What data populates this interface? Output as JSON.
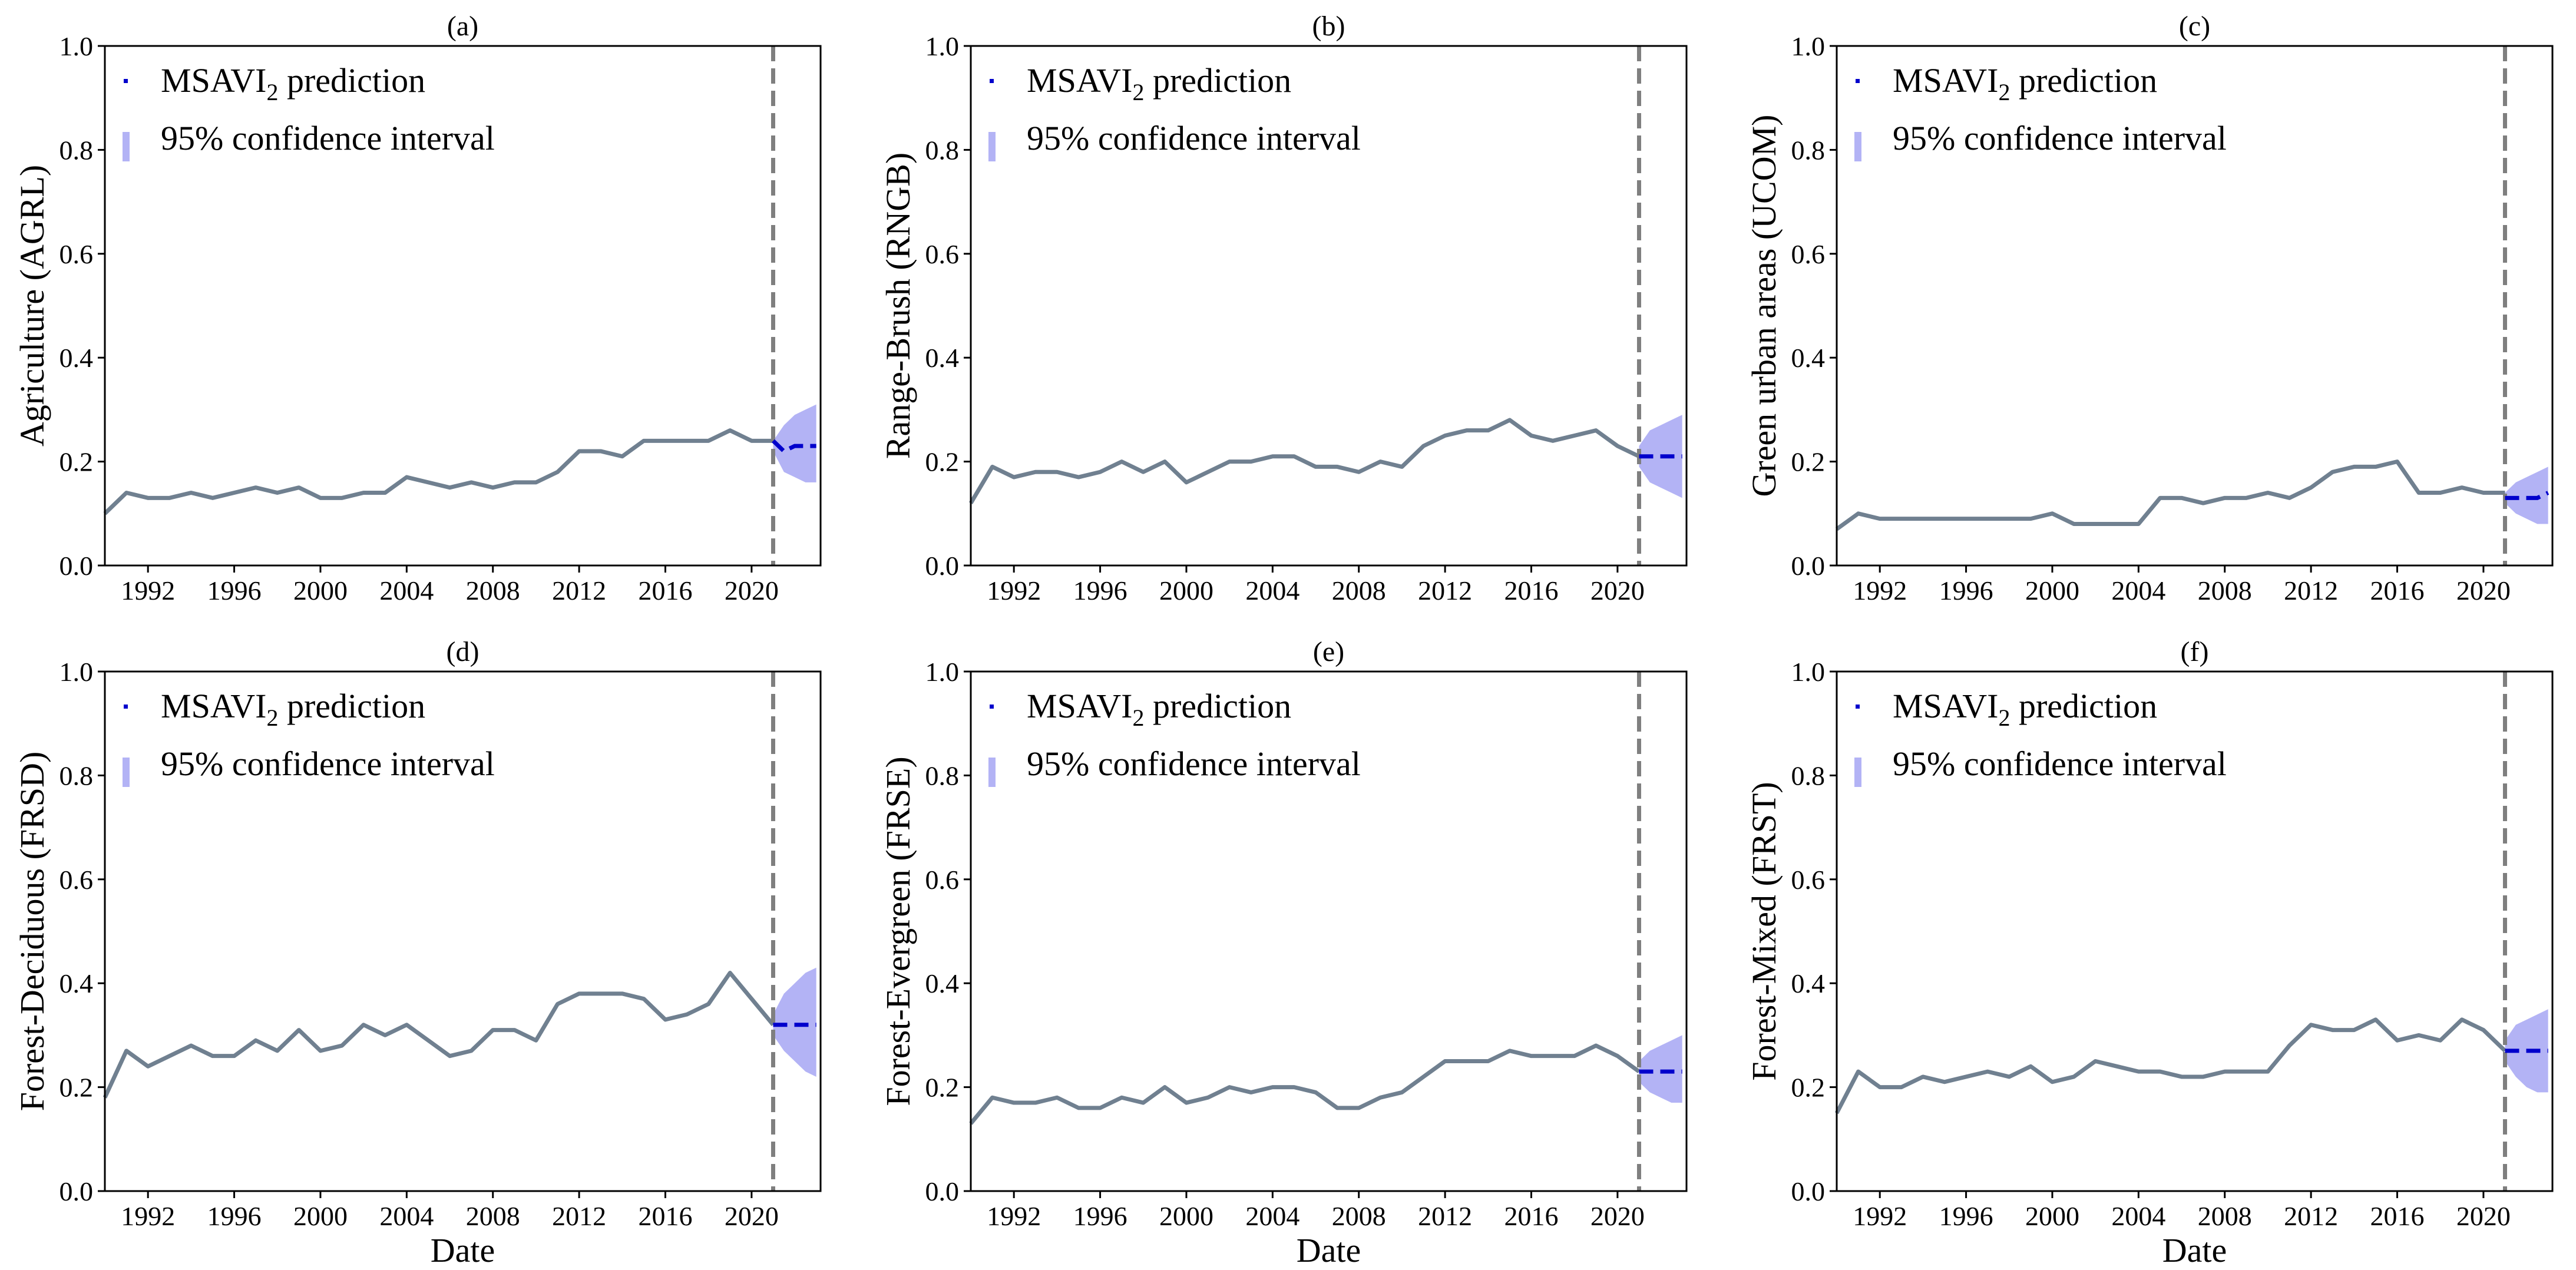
{
  "chart_data": [
    {
      "type": "line",
      "title": "(a)",
      "xlabel": "",
      "ylabel": "Agriculture (AGRL)",
      "ylim": [
        0.0,
        1.0
      ],
      "xlim": [
        1990,
        2023.2
      ],
      "xticks": [
        "1992",
        "1996",
        "2000",
        "2004",
        "2008",
        "2012",
        "2016",
        "2020"
      ],
      "yticks": [
        "0.0",
        "0.2",
        "0.4",
        "0.6",
        "0.8",
        "1.0"
      ],
      "vline_x": 2021,
      "legend": {
        "position": "top-left",
        "entries": [
          {
            "label_main": "MSAVI",
            "label_sub": "2",
            "label_rest": " prediction",
            "kind": "marker",
            "color": "#0000cc"
          },
          {
            "label": "95% confidence interval",
            "kind": "patch",
            "color": "#b3b3f5"
          }
        ]
      },
      "series": [
        {
          "kind": "observed",
          "color": "#708090",
          "x": [
            1990,
            1991,
            1992,
            1993,
            1994,
            1995,
            1996,
            1997,
            1998,
            1999,
            2000,
            2001,
            2002,
            2003,
            2004,
            2005,
            2006,
            2007,
            2008,
            2009,
            2010,
            2011,
            2012,
            2013,
            2014,
            2015,
            2016,
            2017,
            2018,
            2019,
            2020,
            2021
          ],
          "y": [
            0.1,
            0.14,
            0.13,
            0.13,
            0.14,
            0.13,
            0.14,
            0.15,
            0.14,
            0.15,
            0.13,
            0.13,
            0.14,
            0.14,
            0.17,
            0.16,
            0.15,
            0.16,
            0.15,
            0.16,
            0.16,
            0.18,
            0.22,
            0.22,
            0.21,
            0.24,
            0.24,
            0.24,
            0.24,
            0.26,
            0.24,
            0.24
          ]
        },
        {
          "kind": "prediction",
          "color": "#0000cc",
          "x": [
            2021,
            2021.5,
            2022,
            2022.5,
            2023
          ],
          "y": [
            0.24,
            0.22,
            0.23,
            0.23,
            0.23
          ],
          "ci_lower": [
            0.22,
            0.18,
            0.17,
            0.16,
            0.16
          ],
          "ci_upper": [
            0.24,
            0.27,
            0.29,
            0.3,
            0.31
          ]
        }
      ]
    },
    {
      "type": "line",
      "title": "(b)",
      "xlabel": "",
      "ylabel": "Range-Brush (RNGB)",
      "ylim": [
        0.0,
        1.0
      ],
      "xlim": [
        1990,
        2023.2
      ],
      "xticks": [
        "1992",
        "1996",
        "2000",
        "2004",
        "2008",
        "2012",
        "2016",
        "2020"
      ],
      "yticks": [
        "0.0",
        "0.2",
        "0.4",
        "0.6",
        "0.8",
        "1.0"
      ],
      "vline_x": 2021,
      "legend": {
        "position": "top-left",
        "entries": [
          {
            "label_main": "MSAVI",
            "label_sub": "2",
            "label_rest": " prediction",
            "kind": "marker",
            "color": "#0000cc"
          },
          {
            "label": "95% confidence interval",
            "kind": "patch",
            "color": "#b3b3f5"
          }
        ]
      },
      "series": [
        {
          "kind": "observed",
          "color": "#708090",
          "x": [
            1990,
            1991,
            1992,
            1993,
            1994,
            1995,
            1996,
            1997,
            1998,
            1999,
            2000,
            2001,
            2002,
            2003,
            2004,
            2005,
            2006,
            2007,
            2008,
            2009,
            2010,
            2011,
            2012,
            2013,
            2014,
            2015,
            2016,
            2017,
            2018,
            2019,
            2020,
            2021
          ],
          "y": [
            0.12,
            0.19,
            0.17,
            0.18,
            0.18,
            0.17,
            0.18,
            0.2,
            0.18,
            0.2,
            0.16,
            0.18,
            0.2,
            0.2,
            0.21,
            0.21,
            0.19,
            0.19,
            0.18,
            0.2,
            0.19,
            0.23,
            0.25,
            0.26,
            0.26,
            0.28,
            0.25,
            0.24,
            0.25,
            0.26,
            0.23,
            0.21
          ]
        },
        {
          "kind": "prediction",
          "color": "#0000cc",
          "x": [
            2021,
            2021.5,
            2022,
            2022.5,
            2023
          ],
          "y": [
            0.21,
            0.21,
            0.21,
            0.21,
            0.21
          ],
          "ci_lower": [
            0.19,
            0.16,
            0.15,
            0.14,
            0.13
          ],
          "ci_upper": [
            0.23,
            0.26,
            0.27,
            0.28,
            0.29
          ]
        }
      ]
    },
    {
      "type": "line",
      "title": "(c)",
      "xlabel": "",
      "ylabel": "Green urban areas (UCOM)",
      "ylim": [
        0.0,
        1.0
      ],
      "xlim": [
        1990,
        2023.2
      ],
      "xticks": [
        "1992",
        "1996",
        "2000",
        "2004",
        "2008",
        "2012",
        "2016",
        "2020"
      ],
      "yticks": [
        "0.0",
        "0.2",
        "0.4",
        "0.6",
        "0.8",
        "1.0"
      ],
      "vline_x": 2021,
      "legend": {
        "position": "top-left",
        "entries": [
          {
            "label_main": "MSAVI",
            "label_sub": "2",
            "label_rest": " prediction",
            "kind": "marker",
            "color": "#0000cc"
          },
          {
            "label": "95% confidence interval",
            "kind": "patch",
            "color": "#b3b3f5"
          }
        ]
      },
      "series": [
        {
          "kind": "observed",
          "color": "#708090",
          "x": [
            1990,
            1991,
            1992,
            1993,
            1994,
            1995,
            1996,
            1997,
            1998,
            1999,
            2000,
            2001,
            2002,
            2003,
            2004,
            2005,
            2006,
            2007,
            2008,
            2009,
            2010,
            2011,
            2012,
            2013,
            2014,
            2015,
            2016,
            2017,
            2018,
            2019,
            2020,
            2021
          ],
          "y": [
            0.07,
            0.1,
            0.09,
            0.09,
            0.09,
            0.09,
            0.09,
            0.09,
            0.09,
            0.09,
            0.1,
            0.08,
            0.08,
            0.08,
            0.08,
            0.13,
            0.13,
            0.12,
            0.13,
            0.13,
            0.14,
            0.13,
            0.15,
            0.18,
            0.19,
            0.19,
            0.2,
            0.14,
            0.14,
            0.15,
            0.14,
            0.14
          ]
        },
        {
          "kind": "prediction",
          "color": "#0000cc",
          "x": [
            2021,
            2021.5,
            2022,
            2022.5,
            2023
          ],
          "y": [
            0.13,
            0.13,
            0.13,
            0.13,
            0.14
          ],
          "ci_lower": [
            0.12,
            0.1,
            0.09,
            0.08,
            0.08
          ],
          "ci_upper": [
            0.14,
            0.16,
            0.17,
            0.18,
            0.19
          ]
        }
      ]
    },
    {
      "type": "line",
      "title": "(d)",
      "xlabel": "Date",
      "ylabel": "Forest-Deciduous (FRSD)",
      "ylim": [
        0.0,
        1.0
      ],
      "xlim": [
        1990,
        2023.2
      ],
      "xticks": [
        "1992",
        "1996",
        "2000",
        "2004",
        "2008",
        "2012",
        "2016",
        "2020"
      ],
      "yticks": [
        "0.0",
        "0.2",
        "0.4",
        "0.6",
        "0.8",
        "1.0"
      ],
      "vline_x": 2021,
      "legend": {
        "position": "top-left",
        "entries": [
          {
            "label_main": "MSAVI",
            "label_sub": "2",
            "label_rest": " prediction",
            "kind": "marker",
            "color": "#0000cc"
          },
          {
            "label": "95% confidence interval",
            "kind": "patch",
            "color": "#b3b3f5"
          }
        ]
      },
      "series": [
        {
          "kind": "observed",
          "color": "#708090",
          "x": [
            1990,
            1991,
            1992,
            1993,
            1994,
            1995,
            1996,
            1997,
            1998,
            1999,
            2000,
            2001,
            2002,
            2003,
            2004,
            2005,
            2006,
            2007,
            2008,
            2009,
            2010,
            2011,
            2012,
            2013,
            2014,
            2015,
            2016,
            2017,
            2018,
            2019,
            2020,
            2021
          ],
          "y": [
            0.18,
            0.27,
            0.24,
            0.26,
            0.28,
            0.26,
            0.26,
            0.29,
            0.27,
            0.31,
            0.27,
            0.28,
            0.32,
            0.3,
            0.32,
            0.29,
            0.26,
            0.27,
            0.31,
            0.31,
            0.29,
            0.36,
            0.38,
            0.38,
            0.38,
            0.37,
            0.33,
            0.34,
            0.36,
            0.42,
            0.37,
            0.32
          ]
        },
        {
          "kind": "prediction",
          "color": "#0000cc",
          "x": [
            2021,
            2021.5,
            2022,
            2022.5,
            2023
          ],
          "y": [
            0.32,
            0.32,
            0.32,
            0.32,
            0.32
          ],
          "ci_lower": [
            0.3,
            0.27,
            0.25,
            0.23,
            0.22
          ],
          "ci_upper": [
            0.34,
            0.38,
            0.4,
            0.42,
            0.43
          ]
        }
      ]
    },
    {
      "type": "line",
      "title": "(e)",
      "xlabel": "Date",
      "ylabel": "Forest-Evergreen (FRSE)",
      "ylim": [
        0.0,
        1.0
      ],
      "xlim": [
        1990,
        2023.2
      ],
      "xticks": [
        "1992",
        "1996",
        "2000",
        "2004",
        "2008",
        "2012",
        "2016",
        "2020"
      ],
      "yticks": [
        "0.0",
        "0.2",
        "0.4",
        "0.6",
        "0.8",
        "1.0"
      ],
      "vline_x": 2021,
      "legend": {
        "position": "top-left",
        "entries": [
          {
            "label_main": "MSAVI",
            "label_sub": "2",
            "label_rest": " prediction",
            "kind": "marker",
            "color": "#0000cc"
          },
          {
            "label": "95% confidence interval",
            "kind": "patch",
            "color": "#b3b3f5"
          }
        ]
      },
      "series": [
        {
          "kind": "observed",
          "color": "#708090",
          "x": [
            1990,
            1991,
            1992,
            1993,
            1994,
            1995,
            1996,
            1997,
            1998,
            1999,
            2000,
            2001,
            2002,
            2003,
            2004,
            2005,
            2006,
            2007,
            2008,
            2009,
            2010,
            2011,
            2012,
            2013,
            2014,
            2015,
            2016,
            2017,
            2018,
            2019,
            2020,
            2021
          ],
          "y": [
            0.13,
            0.18,
            0.17,
            0.17,
            0.18,
            0.16,
            0.16,
            0.18,
            0.17,
            0.2,
            0.17,
            0.18,
            0.2,
            0.19,
            0.2,
            0.2,
            0.19,
            0.16,
            0.16,
            0.18,
            0.19,
            0.22,
            0.25,
            0.25,
            0.25,
            0.27,
            0.26,
            0.26,
            0.26,
            0.28,
            0.26,
            0.23
          ]
        },
        {
          "kind": "prediction",
          "color": "#0000cc",
          "x": [
            2021,
            2021.5,
            2022,
            2022.5,
            2023
          ],
          "y": [
            0.23,
            0.23,
            0.23,
            0.23,
            0.23
          ],
          "ci_lower": [
            0.21,
            0.19,
            0.18,
            0.17,
            0.17
          ],
          "ci_upper": [
            0.25,
            0.27,
            0.28,
            0.29,
            0.3
          ]
        }
      ]
    },
    {
      "type": "line",
      "title": "(f)",
      "xlabel": "Date",
      "ylabel": "Forest-Mixed (FRST)",
      "ylim": [
        0.0,
        1.0
      ],
      "xlim": [
        1990,
        2023.2
      ],
      "xticks": [
        "1992",
        "1996",
        "2000",
        "2004",
        "2008",
        "2012",
        "2016",
        "2020"
      ],
      "yticks": [
        "0.0",
        "0.2",
        "0.4",
        "0.6",
        "0.8",
        "1.0"
      ],
      "vline_x": 2021,
      "legend": {
        "position": "top-left",
        "entries": [
          {
            "label_main": "MSAVI",
            "label_sub": "2",
            "label_rest": " prediction",
            "kind": "marker",
            "color": "#0000cc"
          },
          {
            "label": "95% confidence interval",
            "kind": "patch",
            "color": "#b3b3f5"
          }
        ]
      },
      "series": [
        {
          "kind": "observed",
          "color": "#708090",
          "x": [
            1990,
            1991,
            1992,
            1993,
            1994,
            1995,
            1996,
            1997,
            1998,
            1999,
            2000,
            2001,
            2002,
            2003,
            2004,
            2005,
            2006,
            2007,
            2008,
            2009,
            2010,
            2011,
            2012,
            2013,
            2014,
            2015,
            2016,
            2017,
            2018,
            2019,
            2020,
            2021
          ],
          "y": [
            0.15,
            0.23,
            0.2,
            0.2,
            0.22,
            0.21,
            0.22,
            0.23,
            0.22,
            0.24,
            0.21,
            0.22,
            0.25,
            0.24,
            0.23,
            0.23,
            0.22,
            0.22,
            0.23,
            0.23,
            0.23,
            0.28,
            0.32,
            0.31,
            0.31,
            0.33,
            0.29,
            0.3,
            0.29,
            0.33,
            0.31,
            0.27
          ]
        },
        {
          "kind": "prediction",
          "color": "#0000cc",
          "x": [
            2021,
            2021.5,
            2022,
            2022.5,
            2023
          ],
          "y": [
            0.27,
            0.27,
            0.27,
            0.27,
            0.27
          ],
          "ci_lower": [
            0.25,
            0.22,
            0.2,
            0.19,
            0.19
          ],
          "ci_upper": [
            0.29,
            0.32,
            0.33,
            0.34,
            0.35
          ]
        }
      ]
    }
  ]
}
